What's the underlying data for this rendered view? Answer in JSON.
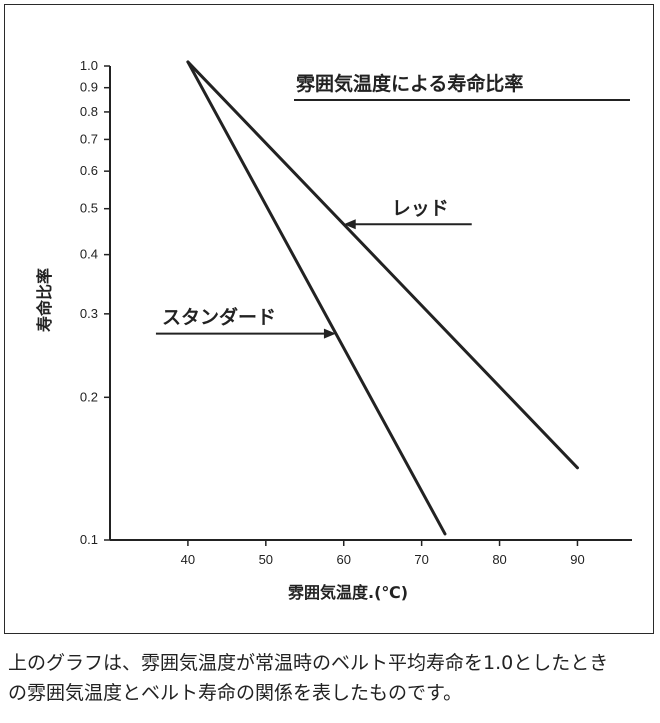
{
  "chart_data": {
    "type": "line",
    "title": "雰囲気温度による寿命比率",
    "xlabel": "雰囲気温度.(℃)",
    "ylabel": "寿命比率",
    "y_scale": "log",
    "xlim": [
      30,
      97
    ],
    "ylim": [
      0.1,
      1.0
    ],
    "x_ticks": [
      40,
      50,
      60,
      70,
      80,
      90
    ],
    "y_ticks": [
      1.0,
      0.9,
      0.8,
      0.7,
      0.6,
      0.5,
      0.4,
      0.3,
      0.2,
      0.1
    ],
    "y_tick_labels": [
      "1.0",
      "0.9",
      "0.8",
      "0.7",
      "0.6",
      "0.5",
      "0.4",
      "0.3",
      "0.2",
      "0.1"
    ],
    "grid": false,
    "series": [
      {
        "name": "スタンダード",
        "x": [
          40,
          73
        ],
        "y": [
          1.02,
          0.103
        ]
      },
      {
        "name": "レッド",
        "x": [
          40,
          90
        ],
        "y": [
          1.02,
          0.142
        ]
      }
    ],
    "annotations": [
      {
        "text": "レッド",
        "series": 1,
        "arrow_target_x": 60
      },
      {
        "text": "スタンダード",
        "series": 0,
        "arrow_target_x": 59
      }
    ]
  },
  "caption": {
    "line1": "上のグラフは、雰囲気温度が常温時のベルト平均寿命を1.0としたとき",
    "line2": "の雰囲気温度とベルト寿命の関係を表したものです。"
  }
}
